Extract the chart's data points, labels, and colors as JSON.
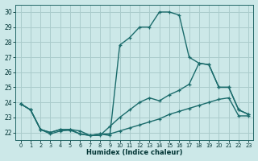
{
  "xlabel": "Humidex (Indice chaleur)",
  "bg_color": "#cce8e8",
  "grid_color": "#aacccc",
  "line_color": "#1a6b6b",
  "xlim": [
    -0.5,
    23.5
  ],
  "ylim": [
    21.5,
    30.5
  ],
  "xticks": [
    0,
    1,
    2,
    3,
    4,
    5,
    6,
    7,
    8,
    9,
    10,
    11,
    12,
    13,
    14,
    15,
    16,
    17,
    18,
    19,
    20,
    21,
    22,
    23
  ],
  "yticks": [
    22,
    23,
    24,
    25,
    26,
    27,
    28,
    29,
    30
  ],
  "line1_x": [
    0,
    1,
    2,
    3,
    4,
    5,
    6,
    7,
    8,
    9,
    10,
    11,
    12,
    13,
    14,
    15,
    16,
    17,
    18,
    19,
    20,
    21,
    22,
    23
  ],
  "line1_y": [
    23.9,
    23.5,
    22.2,
    21.9,
    22.1,
    22.15,
    21.9,
    21.8,
    21.9,
    21.8,
    27.8,
    28.3,
    29.0,
    29.0,
    30.0,
    30.0,
    29.8,
    27.0,
    26.6,
    26.5,
    25.0,
    25.0,
    23.5,
    23.2
  ],
  "line2_x": [
    0,
    1,
    2,
    3,
    4,
    5,
    6,
    7,
    8,
    9,
    10,
    11,
    12,
    13,
    14,
    15,
    16,
    17,
    18,
    19,
    20,
    21,
    22,
    23
  ],
  "line2_y": [
    23.9,
    23.5,
    22.2,
    22.0,
    22.2,
    22.2,
    22.1,
    21.8,
    21.8,
    22.4,
    23.0,
    23.5,
    24.0,
    24.3,
    24.1,
    24.5,
    24.8,
    25.2,
    26.6,
    26.5,
    25.0,
    25.0,
    23.5,
    23.2
  ],
  "line3_x": [
    0,
    1,
    2,
    3,
    4,
    5,
    6,
    7,
    8,
    9,
    10,
    11,
    12,
    13,
    14,
    15,
    16,
    17,
    18,
    19,
    20,
    21,
    22,
    23
  ],
  "line3_y": [
    23.9,
    23.5,
    22.2,
    22.0,
    22.2,
    22.2,
    21.9,
    21.8,
    21.9,
    21.9,
    22.1,
    22.3,
    22.5,
    22.7,
    22.9,
    23.2,
    23.4,
    23.6,
    23.8,
    24.0,
    24.2,
    24.3,
    23.1,
    23.1
  ]
}
